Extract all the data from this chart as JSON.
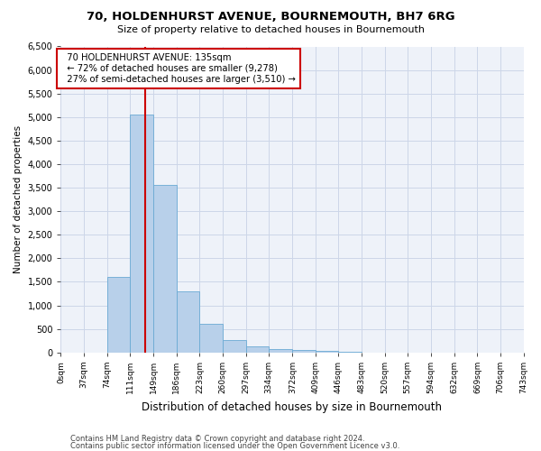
{
  "title1": "70, HOLDENHURST AVENUE, BOURNEMOUTH, BH7 6RG",
  "title2": "Size of property relative to detached houses in Bournemouth",
  "xlabel": "Distribution of detached houses by size in Bournemouth",
  "ylabel": "Number of detached properties",
  "footer1": "Contains HM Land Registry data © Crown copyright and database right 2024.",
  "footer2": "Contains public sector information licensed under the Open Government Licence v3.0.",
  "annotation_line1": "  70 HOLDENHURST AVENUE: 135sqm",
  "annotation_line2": "  ← 72% of detached houses are smaller (9,278)",
  "annotation_line3": "  27% of semi-detached houses are larger (3,510) →",
  "property_size": 135,
  "bin_edges": [
    0,
    37,
    74,
    111,
    149,
    186,
    223,
    260,
    297,
    334,
    372,
    409,
    446,
    483,
    520,
    557,
    594,
    632,
    669,
    706,
    743
  ],
  "bar_heights": [
    0,
    0,
    1600,
    5050,
    3550,
    1300,
    600,
    270,
    130,
    80,
    50,
    25,
    12,
    5,
    2,
    1,
    0,
    0,
    0,
    0
  ],
  "bar_color": "#b8d0ea",
  "bar_edge_color": "#6aaad4",
  "vline_color": "#cc0000",
  "vline_x": 135,
  "annotation_box_color": "#cc0000",
  "grid_color": "#ccd6e8",
  "bg_color": "#eef2f9",
  "ylim": [
    0,
    6500
  ],
  "yticks": [
    0,
    500,
    1000,
    1500,
    2000,
    2500,
    3000,
    3500,
    4000,
    4500,
    5000,
    5500,
    6000,
    6500
  ]
}
